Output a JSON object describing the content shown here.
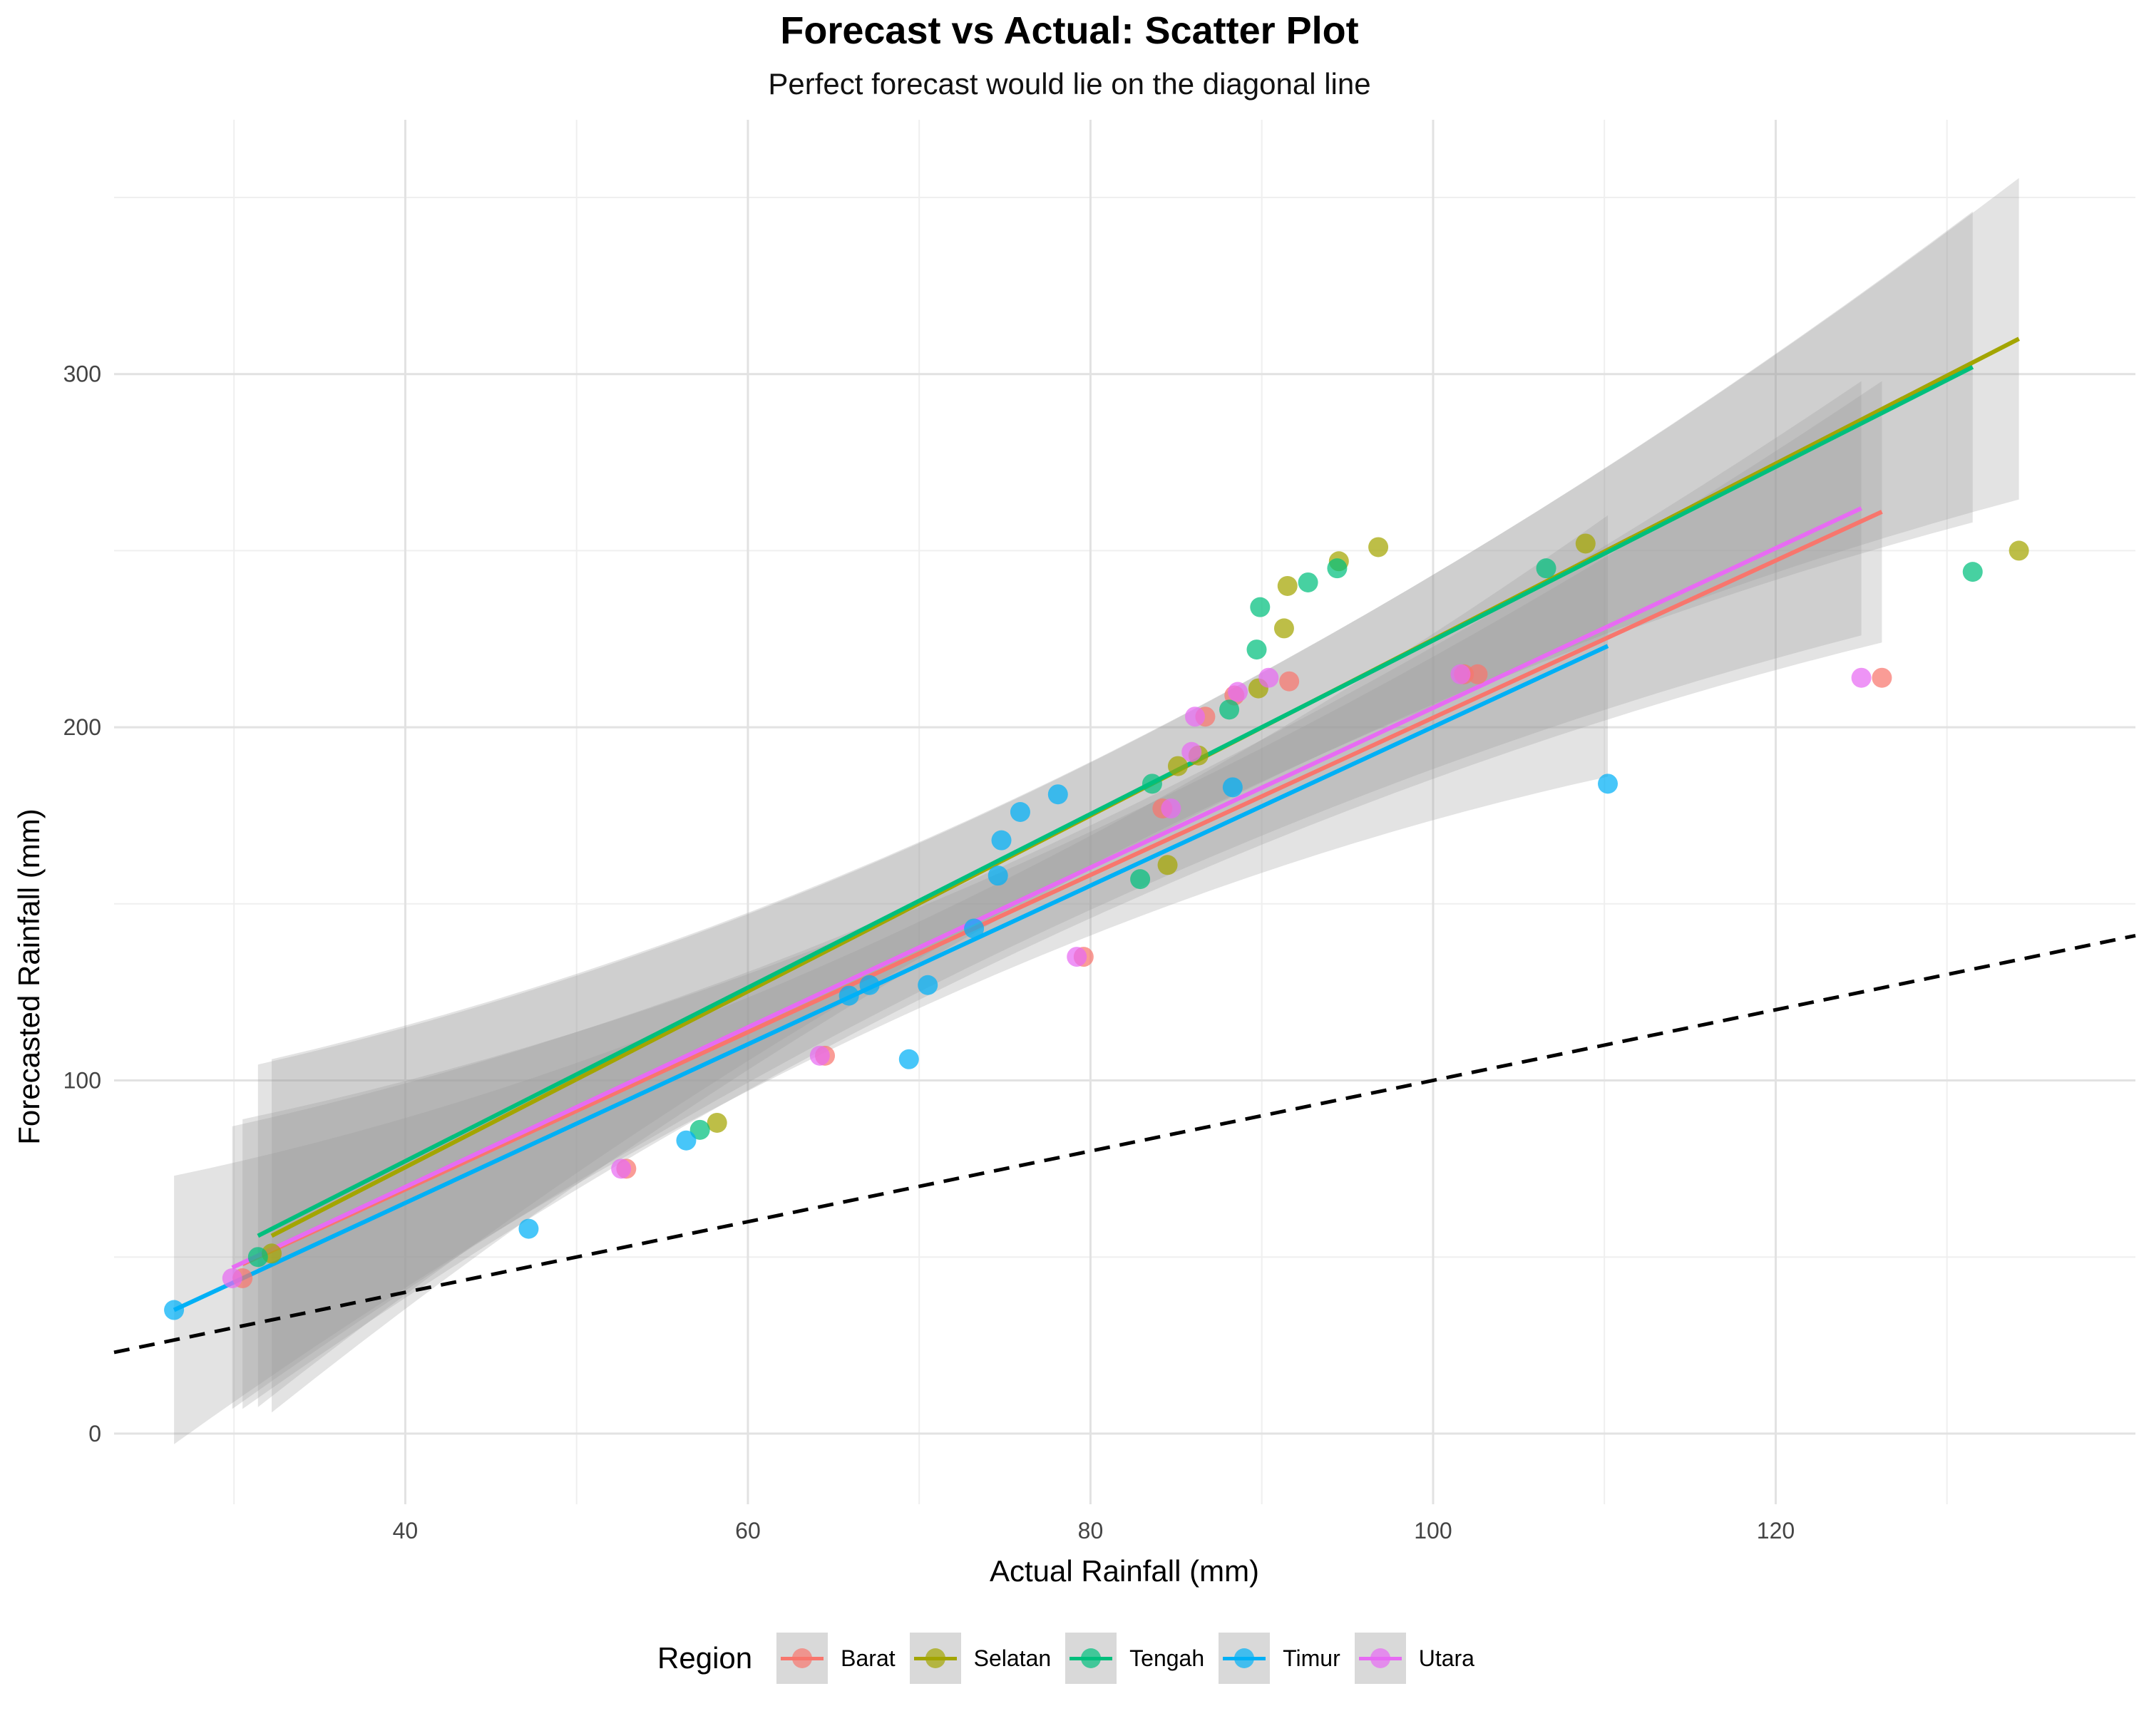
{
  "chart_data": {
    "type": "scatter",
    "title": "Forecast vs Actual: Scatter Plot",
    "subtitle": "Perfect forecast would lie on the diagonal line",
    "xlabel": "Actual Rainfall (mm)",
    "ylabel": "Forecasted Rainfall (mm)",
    "xlim": [
      23,
      141
    ],
    "ylim": [
      -20,
      372
    ],
    "x_ticks": [
      40,
      60,
      80,
      100,
      120
    ],
    "y_ticks": [
      0,
      100,
      200,
      300
    ],
    "grid": true,
    "legend_title": "Region",
    "legend_position": "bottom",
    "reference_line": {
      "slope": 1,
      "intercept": 0,
      "style": "dashed",
      "color": "#000000"
    },
    "series": [
      {
        "name": "Barat",
        "color": "#F8766D",
        "points": [
          [
            30.5,
            44
          ],
          [
            52.9,
            75
          ],
          [
            64.5,
            107
          ],
          [
            79.6,
            135
          ],
          [
            84.2,
            177
          ],
          [
            86.7,
            203
          ],
          [
            88.4,
            209
          ],
          [
            91.6,
            213
          ],
          [
            101.8,
            215
          ],
          [
            102.6,
            215
          ],
          [
            126.2,
            214
          ]
        ],
        "fit": {
          "x_range": [
            30.5,
            126.2
          ],
          "y_start": 48,
          "y_end": 261,
          "band_at_start": [
            6,
            88
          ],
          "band_at_end": [
            224,
            298
          ]
        }
      },
      {
        "name": "Selatan",
        "color": "#A3A500",
        "points": [
          [
            32.2,
            51
          ],
          [
            58.2,
            88
          ],
          [
            84.5,
            161
          ],
          [
            85.1,
            189
          ],
          [
            86.3,
            192
          ],
          [
            89.8,
            211
          ],
          [
            91.3,
            228
          ],
          [
            91.5,
            240
          ],
          [
            94.5,
            247
          ],
          [
            96.8,
            251
          ],
          [
            108.9,
            252
          ],
          [
            134.2,
            250
          ]
        ],
        "fit": {
          "x_range": [
            32.2,
            134.2
          ],
          "y_start": 56,
          "y_end": 310,
          "band_at_start": [
            8,
            108
          ],
          "band_at_end": [
            265,
            356
          ]
        }
      },
      {
        "name": "Tengah",
        "color": "#00BF7D",
        "points": [
          [
            31.4,
            50
          ],
          [
            57.2,
            86
          ],
          [
            82.9,
            157
          ],
          [
            83.6,
            184
          ],
          [
            88.1,
            205
          ],
          [
            89.7,
            222
          ],
          [
            89.9,
            234
          ],
          [
            92.7,
            241
          ],
          [
            94.4,
            245
          ],
          [
            106.6,
            245
          ],
          [
            131.5,
            244
          ]
        ],
        "fit": {
          "x_range": [
            31.4,
            131.5
          ],
          "y_start": 56,
          "y_end": 302,
          "band_at_start": [
            8,
            105
          ],
          "band_at_end": [
            257,
            345
          ]
        }
      },
      {
        "name": "Timur",
        "color": "#00B0F6",
        "points": [
          [
            26.5,
            35
          ],
          [
            47.2,
            58
          ],
          [
            56.4,
            83
          ],
          [
            65.9,
            124
          ],
          [
            67.1,
            127
          ],
          [
            69.4,
            106
          ],
          [
            70.5,
            127
          ],
          [
            73.2,
            143
          ],
          [
            74.6,
            158
          ],
          [
            74.8,
            168
          ],
          [
            75.9,
            176
          ],
          [
            78.1,
            181
          ],
          [
            88.3,
            183
          ],
          [
            110.2,
            184
          ]
        ],
        "fit": {
          "x_range": [
            26.5,
            110.2
          ],
          "y_start": 35,
          "y_end": 223,
          "band_at_start": [
            -3,
            73
          ],
          "band_at_end": [
            184,
            258
          ]
        }
      },
      {
        "name": "Utara",
        "color": "#E76BF3",
        "points": [
          [
            29.9,
            44
          ],
          [
            52.6,
            75
          ],
          [
            64.2,
            107
          ],
          [
            79.2,
            135
          ],
          [
            84.7,
            177
          ],
          [
            85.9,
            193
          ],
          [
            86.1,
            203
          ],
          [
            88.6,
            210
          ],
          [
            90.4,
            214
          ],
          [
            101.6,
            215
          ],
          [
            125.0,
            214
          ]
        ],
        "fit": {
          "x_range": [
            29.9,
            125.0
          ],
          "y_start": 47,
          "y_end": 262,
          "band_at_start": [
            6,
            86
          ],
          "band_at_end": [
            224,
            296
          ]
        }
      }
    ]
  }
}
